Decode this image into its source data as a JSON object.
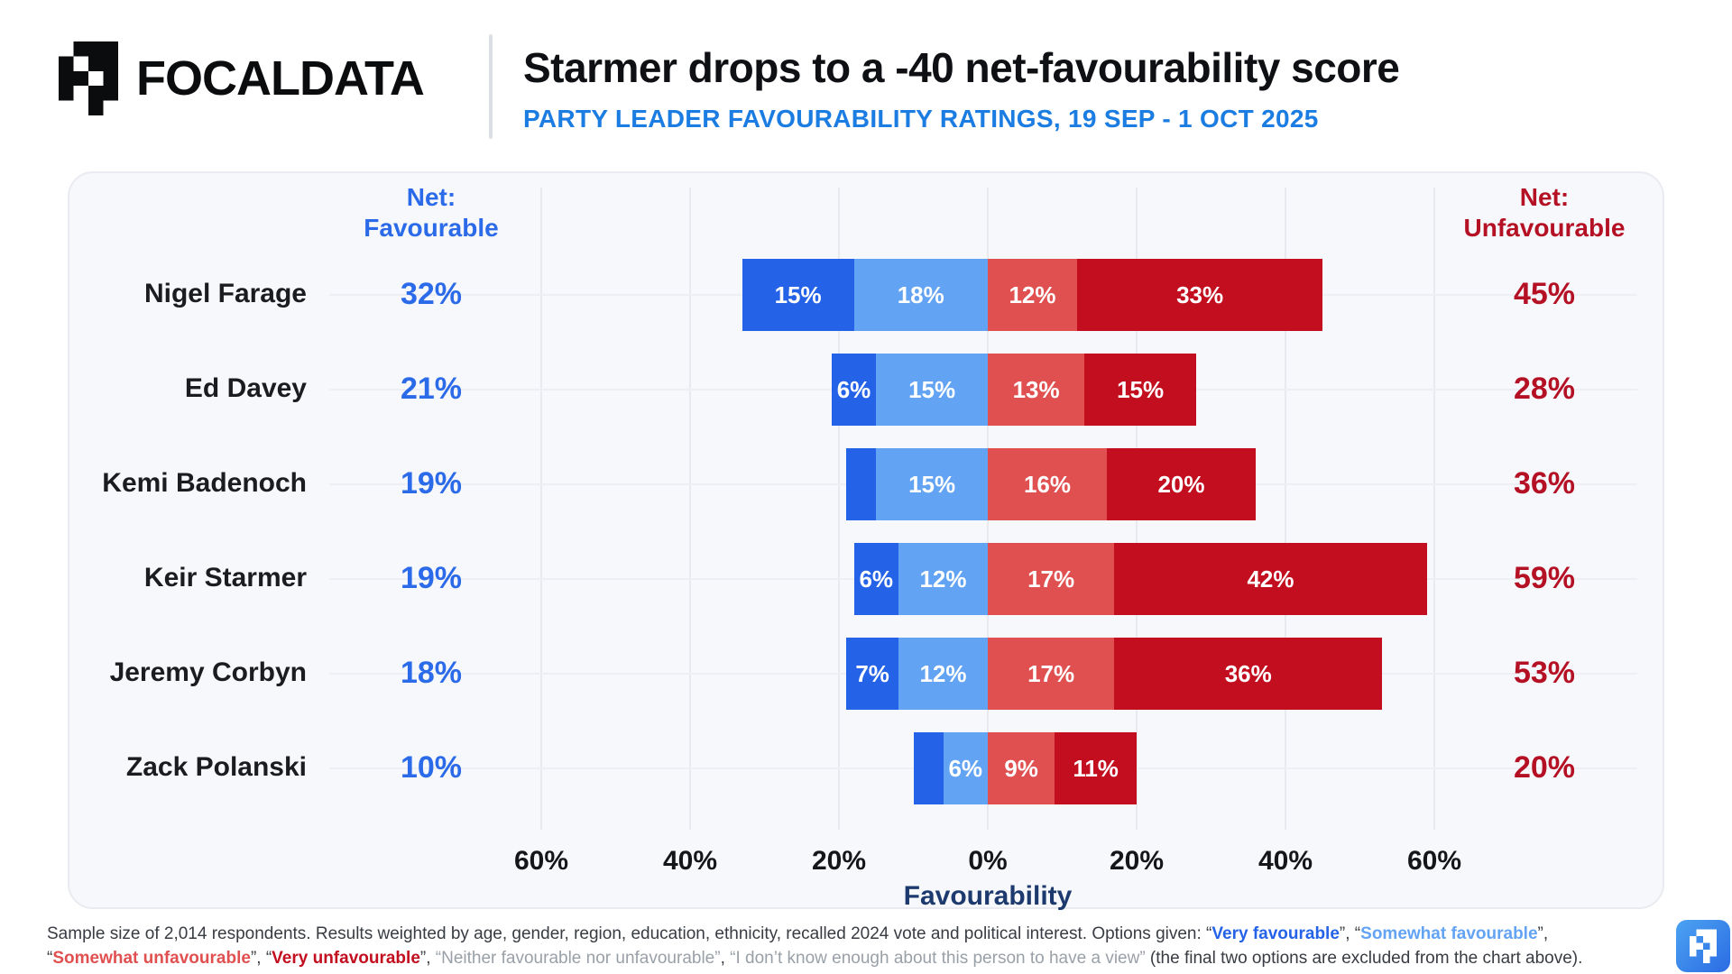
{
  "header": {
    "brand": "FOCALDATA",
    "title": "Starmer drops to a -40 net-favourability score",
    "subtitle": "PARTY LEADER FAVOURABILITY RATINGS, 19 SEP - 1 OCT 2025"
  },
  "chart_data": {
    "type": "bar",
    "variant": "diverging-stacked-horizontal",
    "title": "Starmer drops to a -40 net-favourability score",
    "subtitle": "PARTY LEADER FAVOURABILITY RATINGS, 19 SEP - 1 OCT 2025",
    "xlabel": "Favourability",
    "x_ticks": [
      "60%",
      "40%",
      "20%",
      "0%",
      "20%",
      "40%",
      "60%"
    ],
    "x_axis_note": "percent, favourable plotted left of zero, unfavourable right of zero",
    "grid": true,
    "left_header": {
      "line1": "Net:",
      "line2": "Favourable"
    },
    "right_header": {
      "line1": "Net:",
      "line2": "Unfavourable"
    },
    "legend": [
      "Very favourable",
      "Somewhat favourable",
      "Somewhat unfavourable",
      "Very unfavourable"
    ],
    "colors": {
      "very_favourable": "#2463e8",
      "somewhat_favourable": "#63a3f3",
      "somewhat_unfavourable": "#e15050",
      "very_unfavourable": "#c30e1f",
      "net_favourable_text": "#2b6ae8",
      "net_unfavourable_text": "#b51124",
      "subtitle_text": "#1b7ce2",
      "axis_title_text": "#1d3a6e"
    },
    "rows": [
      {
        "name": "Nigel Farage",
        "net_favourable": "32%",
        "net_unfavourable": "45%",
        "segments": [
          {
            "key": "very_favourable",
            "value": 15,
            "label": "15%"
          },
          {
            "key": "somewhat_favourable",
            "value": 18,
            "label": "18%"
          },
          {
            "key": "somewhat_unfavourable",
            "value": 12,
            "label": "12%"
          },
          {
            "key": "very_unfavourable",
            "value": 33,
            "label": "33%"
          }
        ]
      },
      {
        "name": "Ed Davey",
        "net_favourable": "21%",
        "net_unfavourable": "28%",
        "segments": [
          {
            "key": "very_favourable",
            "value": 6,
            "label": "6%"
          },
          {
            "key": "somewhat_favourable",
            "value": 15,
            "label": "15%"
          },
          {
            "key": "somewhat_unfavourable",
            "value": 13,
            "label": "13%"
          },
          {
            "key": "very_unfavourable",
            "value": 15,
            "label": "15%"
          }
        ]
      },
      {
        "name": "Kemi Badenoch",
        "net_favourable": "19%",
        "net_unfavourable": "36%",
        "segments": [
          {
            "key": "very_favourable",
            "value": 4,
            "label": ""
          },
          {
            "key": "somewhat_favourable",
            "value": 15,
            "label": "15%"
          },
          {
            "key": "somewhat_unfavourable",
            "value": 16,
            "label": "16%"
          },
          {
            "key": "very_unfavourable",
            "value": 20,
            "label": "20%"
          }
        ]
      },
      {
        "name": "Keir Starmer",
        "net_favourable": "19%",
        "net_unfavourable": "59%",
        "segments": [
          {
            "key": "very_favourable",
            "value": 6,
            "label": "6%"
          },
          {
            "key": "somewhat_favourable",
            "value": 12,
            "label": "12%"
          },
          {
            "key": "somewhat_unfavourable",
            "value": 17,
            "label": "17%"
          },
          {
            "key": "very_unfavourable",
            "value": 42,
            "label": "42%"
          }
        ]
      },
      {
        "name": "Jeremy Corbyn",
        "net_favourable": "18%",
        "net_unfavourable": "53%",
        "segments": [
          {
            "key": "very_favourable",
            "value": 7,
            "label": "7%"
          },
          {
            "key": "somewhat_favourable",
            "value": 12,
            "label": "12%"
          },
          {
            "key": "somewhat_unfavourable",
            "value": 17,
            "label": "17%"
          },
          {
            "key": "very_unfavourable",
            "value": 36,
            "label": "36%"
          }
        ]
      },
      {
        "name": "Zack Polanski",
        "net_favourable": "10%",
        "net_unfavourable": "20%",
        "segments": [
          {
            "key": "very_favourable",
            "value": 4,
            "label": ""
          },
          {
            "key": "somewhat_favourable",
            "value": 6,
            "label": "6%"
          },
          {
            "key": "somewhat_unfavourable",
            "value": 9,
            "label": "9%"
          },
          {
            "key": "very_unfavourable",
            "value": 11,
            "label": "11%"
          }
        ]
      }
    ]
  },
  "footer": {
    "colors": {
      "default": "#383c42",
      "gray": "#9aa0a8",
      "blue": "#2463e8",
      "lightblue": "#63a3f3",
      "lightred": "#e15050",
      "darkred": "#c30e1f"
    },
    "lines": [
      [
        {
          "text": "Sample size of 2,014 respondents. Results weighted by age, gender, region, education, ethnicity, recalled 2024 vote and political interest. Options given: “",
          "color": "default"
        },
        {
          "text": "Very favourable",
          "color": "blue"
        },
        {
          "text": "”, “",
          "color": "default"
        },
        {
          "text": "Somewhat favourable",
          "color": "lightblue"
        },
        {
          "text": "”,",
          "color": "default"
        }
      ],
      [
        {
          "text": "“",
          "color": "default"
        },
        {
          "text": "Somewhat unfavourable",
          "color": "lightred"
        },
        {
          "text": "”, “",
          "color": "default"
        },
        {
          "text": "Very unfavourable",
          "color": "darkred"
        },
        {
          "text": "”, ",
          "color": "default"
        },
        {
          "text": "“Neither favourable nor unfavourable”",
          "color": "gray"
        },
        {
          "text": ", ",
          "color": "default"
        },
        {
          "text": "“I don’t know enough about this person to have a view”",
          "color": "gray"
        },
        {
          "text": " (the final two options are excluded from the chart above).",
          "color": "default"
        }
      ]
    ]
  }
}
